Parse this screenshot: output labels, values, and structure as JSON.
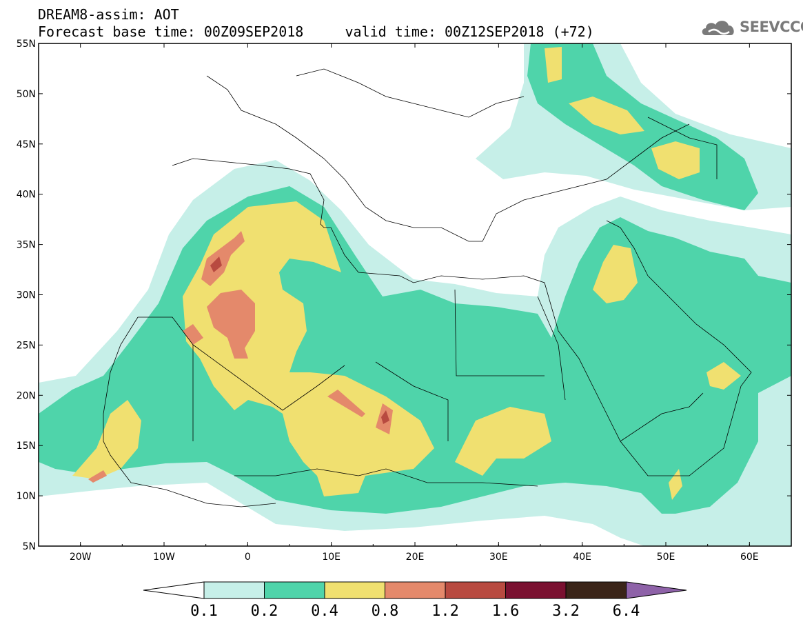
{
  "header": {
    "title_line1": "DREAM8-assim: AOT",
    "title_line2": "Forecast base time: 00Z09SEP2018     valid time: 00Z12SEP2018 (+72)",
    "logo_text": "SEEVCCC"
  },
  "map": {
    "lon_range": [
      -25,
      65
    ],
    "lat_range": [
      5,
      55
    ],
    "lon_ticks": [
      "20W",
      "10W",
      "0",
      "10E",
      "20E",
      "30E",
      "40E",
      "50E",
      "60E"
    ],
    "lat_ticks": [
      "55N",
      "50N",
      "45N",
      "40N",
      "35N",
      "30N",
      "25N",
      "20N",
      "15N",
      "10N",
      "5N"
    ]
  },
  "colorbar": {
    "labels": [
      "0.1",
      "0.2",
      "0.4",
      "0.8",
      "1.2",
      "1.6",
      "3.2",
      "6.4"
    ],
    "colors": {
      "c1": "#c6efe8",
      "c2": "#4fd4aa",
      "c3": "#f0e070",
      "c4": "#e4896b",
      "c5": "#b84a40",
      "c6": "#7a1030",
      "c7": "#3a2418",
      "c8": "#8e62a8"
    }
  }
}
